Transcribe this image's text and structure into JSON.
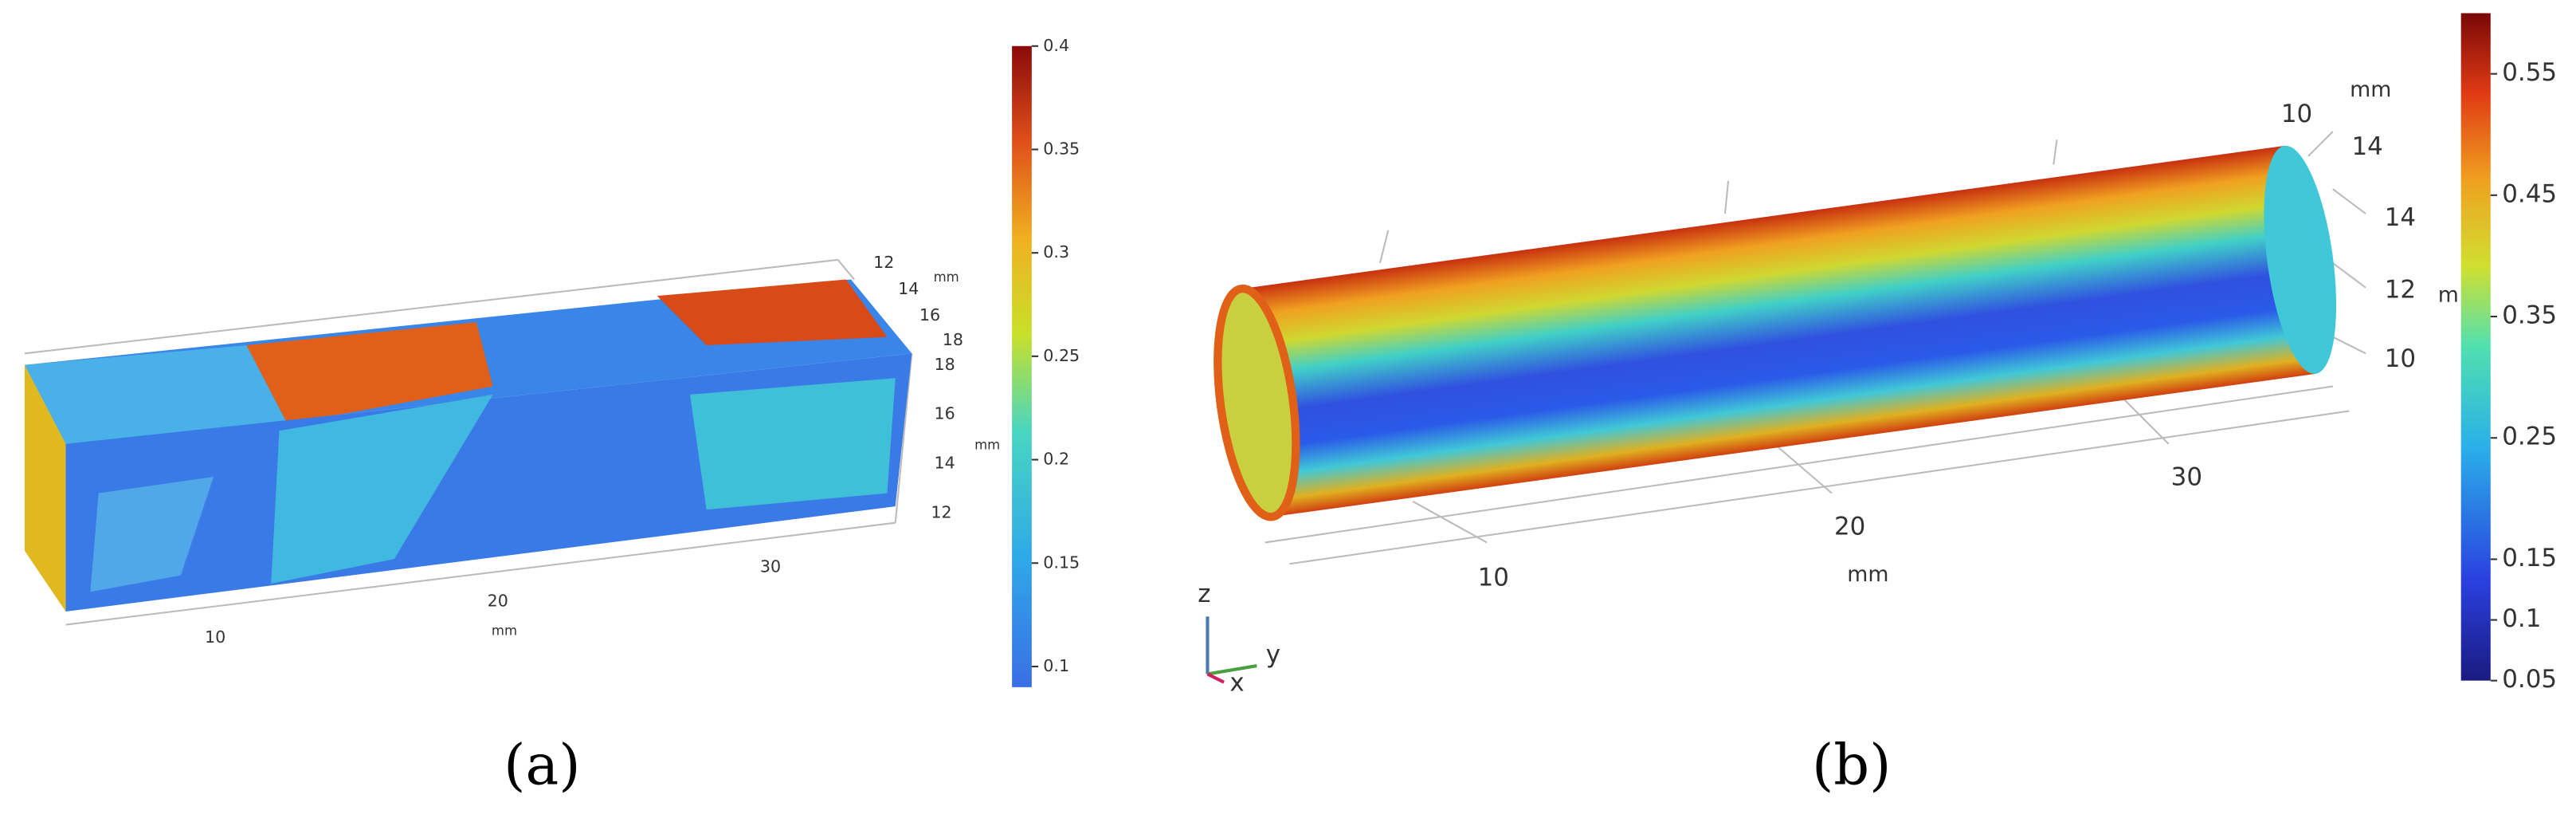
{
  "panels": [
    {
      "label": "(a)",
      "colorbar": {
        "range": [
          0.09,
          0.4
        ],
        "ticks": [
          0.1,
          0.15,
          0.2,
          0.25,
          0.3,
          0.35,
          0.4
        ]
      },
      "x_ticks": [
        10,
        20,
        30
      ],
      "x_unit": "mm",
      "y_ticks": [
        12,
        14,
        16,
        18
      ],
      "y_unit": "mm",
      "z_ticks": [
        18,
        16,
        14,
        12
      ],
      "z_unit": "mm"
    },
    {
      "label": "(b)",
      "colorbar": {
        "range": [
          0.05,
          0.6
        ],
        "ticks": [
          0.05,
          0.1,
          0.15,
          0.25,
          0.35,
          0.45,
          0.55
        ]
      },
      "x_ticks": [
        10,
        20,
        30
      ],
      "x_unit": "mm",
      "y_ticks": [
        10,
        14
      ],
      "y_unit": "mm",
      "z_ticks": [
        14,
        12,
        10
      ],
      "z_unit": "m",
      "triad": [
        "z",
        "y",
        "x"
      ]
    }
  ]
}
